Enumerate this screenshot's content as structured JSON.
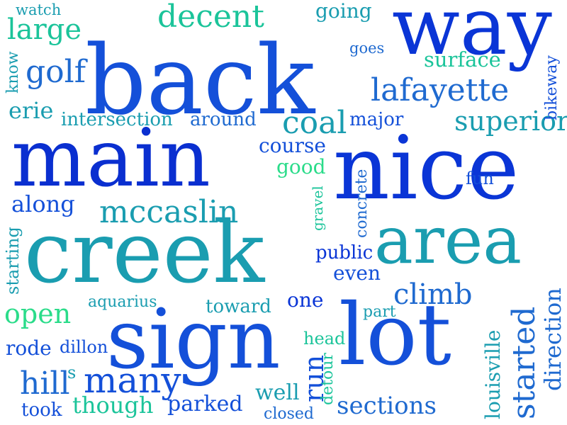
{
  "colors": {
    "blue": "#0a35d6",
    "royal": "#1450d9",
    "azure": "#1f6ad0",
    "teal": "#1a9db0",
    "green": "#1bc49a",
    "light_green": "#2bdc8a"
  },
  "words": [
    "back",
    "way",
    "main",
    "nice",
    "creek",
    "area",
    "sign",
    "lot",
    "watch",
    "large",
    "decent",
    "going",
    "goes",
    "know",
    "golf",
    "surface",
    "bikeway",
    "lafayette",
    "erie",
    "intersection",
    "around",
    "coal",
    "major",
    "superior",
    "course",
    "good",
    "gravel",
    "concrete",
    "fun",
    "along",
    "mccaslin",
    "starting",
    "public",
    "even",
    "climb",
    "open",
    "aquarius",
    "toward",
    "one",
    "part",
    "started",
    "direction",
    "rode",
    "dillon",
    "head",
    "run",
    "louisville",
    "hill",
    "s",
    "many",
    "detour",
    "well",
    "took",
    "though",
    "parked",
    "closed",
    "sections"
  ]
}
